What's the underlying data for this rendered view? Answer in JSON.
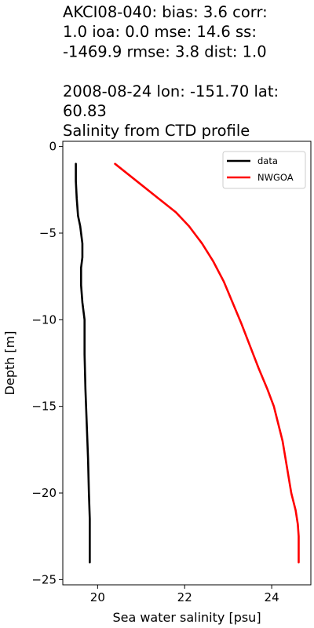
{
  "chart_data": {
    "type": "line",
    "title_lines": [
      "AKCI08-040: bias: 3.6  corr:",
      "1.0  ioa: 0.0  mse: 14.6  ss:",
      "-1469.9  rmse: 3.8  dist: 1.0",
      "",
      "2008-08-24 lon: -151.70 lat:",
      "60.83",
      "Salinity from CTD profile"
    ],
    "xlabel": "Sea water salinity [psu]",
    "ylabel": "Depth [m]",
    "xlim": [
      19.2,
      24.9
    ],
    "ylim": [
      -25.3,
      0.3
    ],
    "xticks": [
      20,
      22,
      24
    ],
    "yticks": [
      0,
      -5,
      -10,
      -15,
      -20,
      -25
    ],
    "grid": false,
    "legend_position": "top-right",
    "series": [
      {
        "name": "data",
        "color": "#000000",
        "x": [
          19.5,
          19.5,
          19.52,
          19.55,
          19.6,
          19.62,
          19.65,
          19.65,
          19.62,
          19.62,
          19.65,
          19.68,
          19.7,
          19.7,
          19.72,
          19.75,
          19.78,
          19.8,
          19.82,
          19.82,
          19.82
        ],
        "y": [
          -1.0,
          -2.0,
          -3.0,
          -4.0,
          -4.6,
          -5.0,
          -5.6,
          -6.4,
          -7.0,
          -8.0,
          -9.0,
          -9.6,
          -10.0,
          -12.0,
          -14.0,
          -16.0,
          -18.0,
          -20.0,
          -21.5,
          -23.0,
          -24.0
        ]
      },
      {
        "name": "NWGOA",
        "color": "#ff0000",
        "x": [
          20.4,
          20.7,
          21.0,
          21.4,
          21.8,
          22.1,
          22.4,
          22.65,
          22.9,
          23.1,
          23.3,
          23.5,
          23.7,
          23.9,
          24.05,
          24.15,
          24.25,
          24.35,
          24.45,
          24.55,
          24.6,
          24.62,
          24.62,
          24.62
        ],
        "y": [
          -1.0,
          -1.6,
          -2.2,
          -3.0,
          -3.8,
          -4.6,
          -5.6,
          -6.6,
          -7.8,
          -9.0,
          -10.2,
          -11.5,
          -12.8,
          -14.0,
          -15.0,
          -16.0,
          -17.0,
          -18.5,
          -20.0,
          -21.0,
          -21.8,
          -22.5,
          -23.3,
          -24.0
        ]
      }
    ]
  }
}
